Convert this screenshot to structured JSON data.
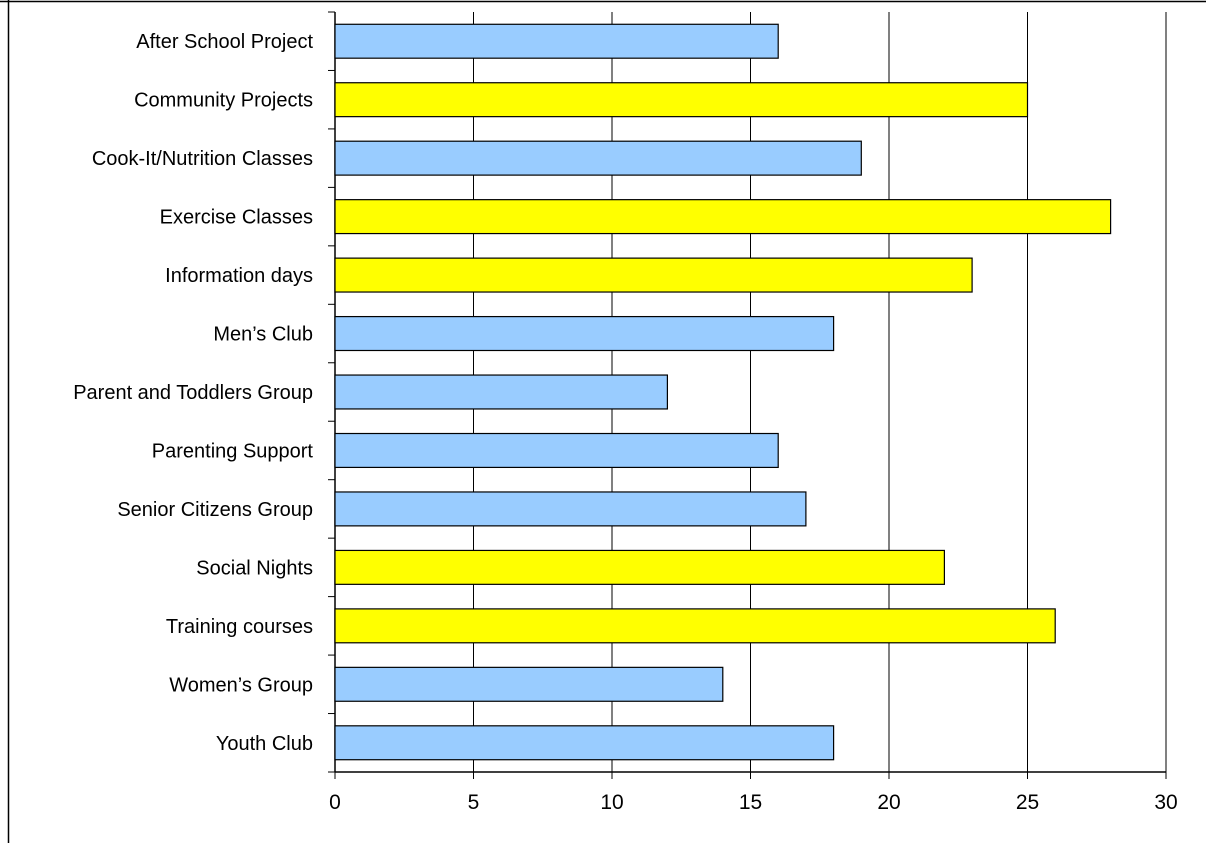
{
  "chart_data": {
    "type": "bar",
    "orientation": "horizontal",
    "categories": [
      "After School Project",
      "Community Projects",
      "Cook-It/Nutrition Classes",
      "Exercise Classes",
      "Information days",
      "Men’s Club",
      "Parent and Toddlers Group",
      "Parenting Support",
      "Senior Citizens Group",
      "Social Nights",
      "Training courses",
      "Women’s Group",
      "Youth Club"
    ],
    "values": [
      16,
      25,
      19,
      28,
      23,
      18,
      12,
      16,
      17,
      22,
      26,
      14,
      18
    ],
    "bar_colors": [
      "#99ccff",
      "#ffff00",
      "#99ccff",
      "#ffff00",
      "#ffff00",
      "#99ccff",
      "#99ccff",
      "#99ccff",
      "#99ccff",
      "#ffff00",
      "#ffff00",
      "#99ccff",
      "#99ccff"
    ],
    "title": "",
    "xlabel": "",
    "ylabel": "",
    "xlim": [
      0,
      30
    ],
    "xticks": [
      0,
      5,
      10,
      15,
      20,
      25,
      30
    ],
    "grid": "vertical",
    "legend": "none"
  },
  "colors": {
    "highlight_bar": "#ffff00",
    "normal_bar": "#99ccff",
    "bar_outline": "#000000",
    "gridline": "#000000"
  }
}
